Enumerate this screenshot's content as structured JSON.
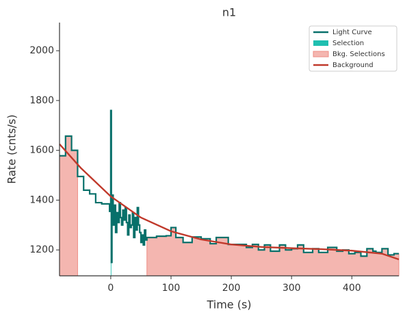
{
  "chart_data": {
    "type": "line",
    "title": "n1",
    "xlabel": "Time (s)",
    "ylabel": "Rate (cnts/s)",
    "xlim": [
      -85,
      478
    ],
    "ylim": [
      1096,
      2113
    ],
    "xticks": [
      0,
      100,
      200,
      300,
      400
    ],
    "yticks": [
      1200,
      1400,
      1600,
      1800,
      2000
    ],
    "legend": "upper right",
    "series": [
      {
        "name": "Light Curve",
        "color": "#07706a",
        "step": true,
        "x": [
          -85,
          -75,
          -65,
          -55,
          -45,
          -35,
          -25,
          -15,
          -2,
          0,
          1,
          2,
          4,
          6,
          8,
          10,
          12,
          14,
          16,
          18,
          20,
          22,
          24,
          26,
          28,
          30,
          32,
          34,
          36,
          38,
          40,
          42,
          44,
          46,
          48,
          50,
          52,
          54,
          56,
          58,
          60,
          76,
          92,
          100,
          108,
          120,
          135,
          150,
          165,
          175,
          195,
          225,
          235,
          245,
          255,
          265,
          280,
          290,
          300,
          310,
          320,
          335,
          345,
          360,
          375,
          385,
          395,
          405,
          415,
          425,
          435,
          440,
          450,
          460,
          470
        ],
        "values": [
          1578,
          1657,
          1600,
          1495,
          1440,
          1425,
          1390,
          1385,
          1355,
          1760,
          1150,
          1420,
          1300,
          1380,
          1270,
          1350,
          1310,
          1390,
          1330,
          1300,
          1360,
          1320,
          1370,
          1310,
          1260,
          1340,
          1290,
          1300,
          1350,
          1250,
          1330,
          1280,
          1370,
          1300,
          1270,
          1230,
          1260,
          1220,
          1280,
          1240,
          1250,
          1255,
          1257,
          1290,
          1250,
          1230,
          1252,
          1245,
          1225,
          1250,
          1222,
          1210,
          1222,
          1200,
          1220,
          1195,
          1220,
          1200,
          1205,
          1220,
          1190,
          1205,
          1190,
          1210,
          1195,
          1200,
          1185,
          1190,
          1175,
          1205,
          1195,
          1190,
          1205,
          1180,
          1185
        ]
      },
      {
        "name": "Background",
        "color": "#c0392b",
        "step": false,
        "x": [
          -85,
          -50,
          0,
          50,
          100,
          150,
          200,
          250,
          300,
          350,
          400,
          450,
          478
        ],
        "values": [
          1625,
          1530,
          1415,
          1330,
          1275,
          1242,
          1222,
          1212,
          1207,
          1203,
          1197,
          1185,
          1162
        ]
      }
    ],
    "selections": [
      {
        "name": "Selection",
        "color": "#1fbfb0",
        "ranges": [
          [
            0,
            1
          ]
        ]
      },
      {
        "name": "Bkg. Selections",
        "color": "#f4b6b0",
        "ranges": [
          [
            -85,
            -55
          ],
          [
            60,
            478
          ]
        ]
      }
    ]
  }
}
